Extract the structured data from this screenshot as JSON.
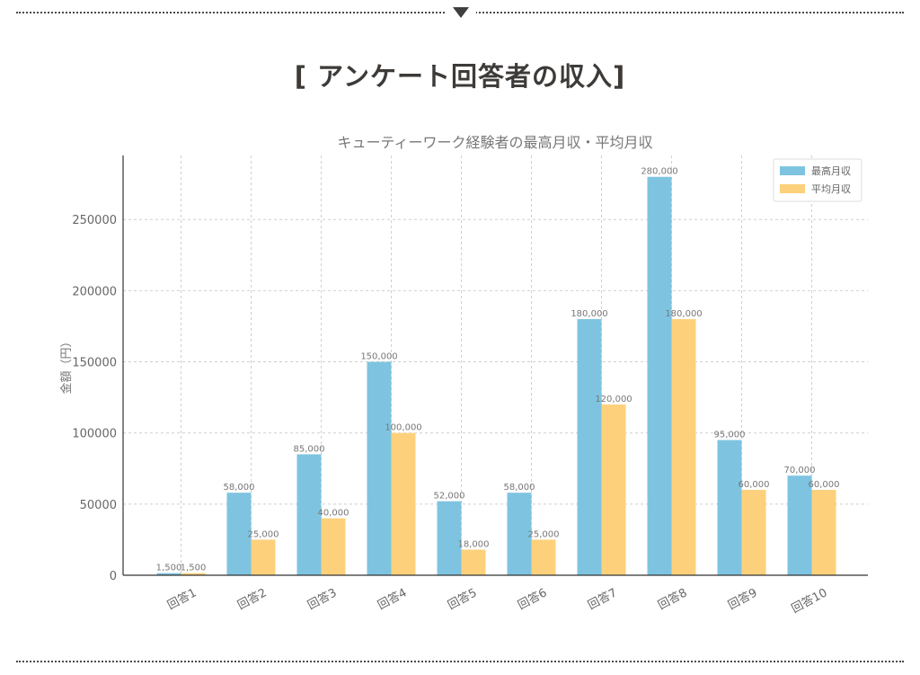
{
  "page": {
    "section_title": "[ アンケート回答者の収入]"
  },
  "chart_data": {
    "type": "bar",
    "title": "キューティーワーク経験者の最高月収・平均月収",
    "xlabel": "",
    "ylabel": "金額（円）",
    "ylim": [
      0,
      295000
    ],
    "yticks": [
      0,
      50000,
      100000,
      150000,
      200000,
      250000
    ],
    "grid": true,
    "legend_position": "top-right",
    "categories": [
      "回答1",
      "回答2",
      "回答3",
      "回答4",
      "回答5",
      "回答6",
      "回答7",
      "回答8",
      "回答9",
      "回答10"
    ],
    "series": [
      {
        "name": "最高月収",
        "color": "#7ec4e0",
        "values": [
          1500,
          58000,
          85000,
          150000,
          52000,
          58000,
          180000,
          280000,
          95000,
          70000
        ],
        "labels": [
          "1,500",
          "58,000",
          "85,000",
          "150,000",
          "52,000",
          "58,000",
          "180,000",
          "280,000",
          "95,000",
          "70,000"
        ]
      },
      {
        "name": "平均月収",
        "color": "#fdd17c",
        "values": [
          1500,
          25000,
          40000,
          100000,
          18000,
          25000,
          120000,
          180000,
          60000,
          60000
        ],
        "labels": [
          "1,500",
          "25,000",
          "40,000",
          "100,000",
          "18,000",
          "25,000",
          "120,000",
          "180,000",
          "60,000",
          "60,000"
        ]
      }
    ]
  }
}
